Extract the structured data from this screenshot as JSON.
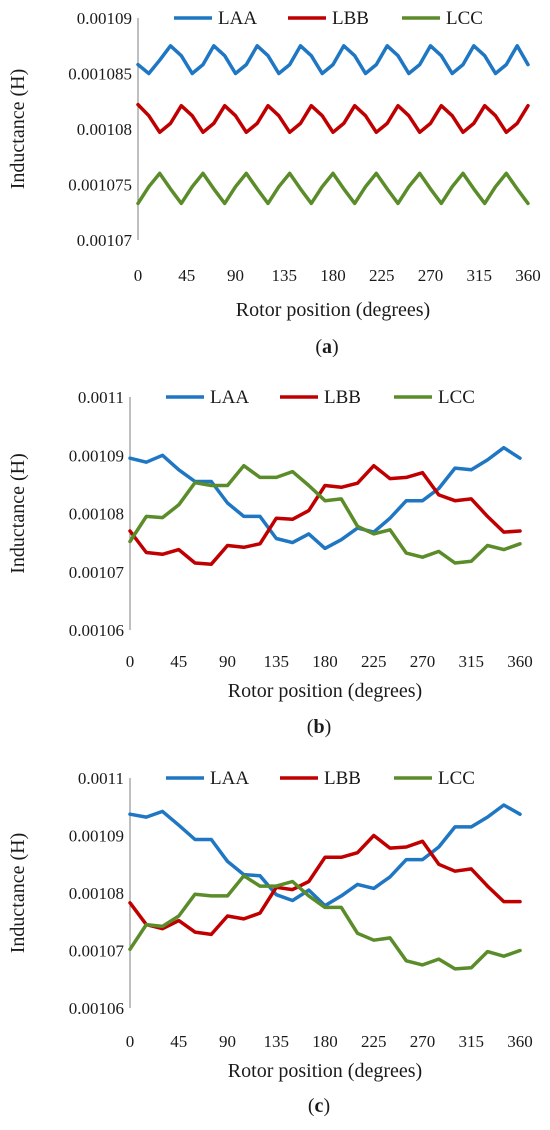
{
  "chart_data": [
    {
      "type": "line",
      "caption": "a",
      "xlabel": "Rotor position (degrees)",
      "ylabel": "Inductance (H)",
      "xlim": [
        0,
        360
      ],
      "ylim": [
        0.00107,
        0.00109
      ],
      "xticks": [
        0,
        45,
        90,
        135,
        180,
        225,
        270,
        315,
        360
      ],
      "yticks": [
        0.00107,
        0.001075,
        0.00108,
        0.001085,
        0.00109
      ],
      "ytick_labels": [
        "0.00107",
        "0.001075",
        "0.00108",
        "0.001085",
        "0.00109"
      ],
      "grid": false,
      "legend_position": "top",
      "series": [
        {
          "name": "LAA",
          "color": "#1f77c4",
          "x": [
            0,
            10,
            20,
            30,
            40,
            50,
            60,
            70,
            80,
            90,
            100,
            110,
            120,
            130,
            140,
            150,
            160,
            170,
            180,
            190,
            200,
            210,
            220,
            230,
            240,
            250,
            260,
            270,
            280,
            290,
            300,
            310,
            320,
            330,
            340,
            350,
            360
          ],
          "y": [
            0.0010858,
            0.001085,
            0.0010862,
            0.0010875,
            0.0010866,
            0.001085,
            0.0010858,
            0.0010875,
            0.0010866,
            0.001085,
            0.0010858,
            0.0010875,
            0.0010866,
            0.001085,
            0.0010858,
            0.0010875,
            0.0010866,
            0.001085,
            0.0010858,
            0.0010875,
            0.0010866,
            0.001085,
            0.0010858,
            0.0010875,
            0.0010866,
            0.001085,
            0.0010858,
            0.0010875,
            0.0010866,
            0.001085,
            0.0010858,
            0.0010875,
            0.0010866,
            0.001085,
            0.0010858,
            0.0010875,
            0.0010858
          ]
        },
        {
          "name": "LBB",
          "color": "#c00000",
          "x": [
            0,
            10,
            20,
            30,
            40,
            50,
            60,
            70,
            80,
            90,
            100,
            110,
            120,
            130,
            140,
            150,
            160,
            170,
            180,
            190,
            200,
            210,
            220,
            230,
            240,
            250,
            260,
            270,
            280,
            290,
            300,
            310,
            320,
            330,
            340,
            350,
            360
          ],
          "y": [
            0.0010822,
            0.0010812,
            0.0010797,
            0.0010805,
            0.0010821,
            0.0010812,
            0.0010797,
            0.0010805,
            0.0010821,
            0.0010812,
            0.0010797,
            0.0010805,
            0.0010821,
            0.0010812,
            0.0010797,
            0.0010805,
            0.0010821,
            0.0010812,
            0.0010797,
            0.0010805,
            0.0010821,
            0.0010812,
            0.0010797,
            0.0010805,
            0.0010821,
            0.0010812,
            0.0010797,
            0.0010805,
            0.0010821,
            0.0010812,
            0.0010797,
            0.0010805,
            0.0010821,
            0.0010812,
            0.0010797,
            0.0010805,
            0.0010821
          ]
        },
        {
          "name": "LCC",
          "color": "#5b8c2a",
          "x": [
            0,
            10,
            20,
            30,
            40,
            50,
            60,
            70,
            80,
            90,
            100,
            110,
            120,
            130,
            140,
            150,
            160,
            170,
            180,
            190,
            200,
            210,
            220,
            230,
            240,
            250,
            260,
            270,
            280,
            290,
            300,
            310,
            320,
            330,
            340,
            350,
            360
          ],
          "y": [
            0.0010733,
            0.0010748,
            0.001076,
            0.0010746,
            0.0010733,
            0.0010748,
            0.001076,
            0.0010746,
            0.0010733,
            0.0010748,
            0.001076,
            0.0010746,
            0.0010733,
            0.0010748,
            0.001076,
            0.0010746,
            0.0010733,
            0.0010748,
            0.001076,
            0.0010746,
            0.0010733,
            0.0010748,
            0.001076,
            0.0010746,
            0.0010733,
            0.0010748,
            0.001076,
            0.0010746,
            0.0010733,
            0.0010748,
            0.001076,
            0.0010746,
            0.0010733,
            0.0010748,
            0.001076,
            0.0010746,
            0.0010733
          ]
        }
      ]
    },
    {
      "type": "line",
      "caption": "b",
      "xlabel": "Rotor position (degrees)",
      "ylabel": "Inductance (H)",
      "xlim": [
        0,
        360
      ],
      "ylim": [
        0.00106,
        0.0011
      ],
      "xticks": [
        0,
        45,
        90,
        135,
        180,
        225,
        270,
        315,
        360
      ],
      "yticks": [
        0.00106,
        0.00107,
        0.00108,
        0.00109,
        0.0011
      ],
      "ytick_labels": [
        "0.00106",
        "0.00107",
        "0.00108",
        "0.00109",
        "0.0011"
      ],
      "grid": false,
      "legend_position": "top",
      "series": [
        {
          "name": "LAA",
          "color": "#1f77c4",
          "x": [
            0,
            15,
            30,
            45,
            60,
            75,
            90,
            105,
            120,
            135,
            150,
            165,
            180,
            195,
            210,
            225,
            240,
            255,
            270,
            285,
            300,
            315,
            330,
            345,
            360
          ],
          "y": [
            0.0010895,
            0.0010888,
            0.00109,
            0.0010875,
            0.0010855,
            0.0010855,
            0.0010818,
            0.0010795,
            0.0010795,
            0.0010757,
            0.001075,
            0.0010765,
            0.001074,
            0.0010755,
            0.0010775,
            0.0010768,
            0.0010792,
            0.0010822,
            0.0010822,
            0.0010843,
            0.0010878,
            0.0010875,
            0.0010892,
            0.0010913,
            0.0010895
          ]
        },
        {
          "name": "LBB",
          "color": "#c00000",
          "x": [
            0,
            15,
            30,
            45,
            60,
            75,
            90,
            105,
            120,
            135,
            150,
            165,
            180,
            195,
            210,
            225,
            240,
            255,
            270,
            285,
            300,
            315,
            330,
            345,
            360
          ],
          "y": [
            0.001077,
            0.0010733,
            0.001073,
            0.0010738,
            0.0010715,
            0.0010713,
            0.0010745,
            0.0010742,
            0.0010748,
            0.0010792,
            0.001079,
            0.0010805,
            0.0010848,
            0.0010845,
            0.0010852,
            0.0010882,
            0.001086,
            0.0010862,
            0.001087,
            0.0010832,
            0.0010822,
            0.0010825,
            0.0010795,
            0.0010768,
            0.001077
          ]
        },
        {
          "name": "LCC",
          "color": "#5b8c2a",
          "x": [
            0,
            15,
            30,
            45,
            60,
            75,
            90,
            105,
            120,
            135,
            150,
            165,
            180,
            195,
            210,
            225,
            240,
            255,
            270,
            285,
            300,
            315,
            330,
            345,
            360
          ],
          "y": [
            0.0010752,
            0.0010795,
            0.0010793,
            0.0010815,
            0.0010853,
            0.0010848,
            0.0010848,
            0.0010882,
            0.0010862,
            0.0010862,
            0.0010872,
            0.0010848,
            0.0010822,
            0.0010825,
            0.0010778,
            0.0010765,
            0.0010772,
            0.0010732,
            0.0010725,
            0.0010735,
            0.0010715,
            0.0010718,
            0.0010745,
            0.0010738,
            0.0010748
          ]
        }
      ]
    },
    {
      "type": "line",
      "caption": "c",
      "xlabel": "Rotor position (degrees)",
      "ylabel": "Inductance (H)",
      "xlim": [
        0,
        360
      ],
      "ylim": [
        0.00106,
        0.0011
      ],
      "xticks": [
        0,
        45,
        90,
        135,
        180,
        225,
        270,
        315,
        360
      ],
      "yticks": [
        0.00106,
        0.00107,
        0.00108,
        0.00109,
        0.0011
      ],
      "ytick_labels": [
        "0.00106",
        "0.00107",
        "0.00108",
        "0.00109",
        "0.0011"
      ],
      "grid": false,
      "legend_position": "top",
      "series": [
        {
          "name": "LAA",
          "color": "#1f77c4",
          "x": [
            0,
            15,
            30,
            45,
            60,
            75,
            90,
            105,
            120,
            135,
            150,
            165,
            180,
            195,
            210,
            225,
            240,
            255,
            270,
            285,
            300,
            315,
            330,
            345,
            360
          ],
          "y": [
            0.0010937,
            0.0010932,
            0.0010942,
            0.0010918,
            0.0010893,
            0.0010893,
            0.0010855,
            0.0010832,
            0.001083,
            0.0010797,
            0.0010787,
            0.0010805,
            0.0010778,
            0.0010795,
            0.0010815,
            0.0010808,
            0.0010828,
            0.0010858,
            0.0010858,
            0.001088,
            0.0010915,
            0.0010915,
            0.0010932,
            0.0010953,
            0.0010937
          ]
        },
        {
          "name": "LBB",
          "color": "#c00000",
          "x": [
            0,
            15,
            30,
            45,
            60,
            75,
            90,
            105,
            120,
            135,
            150,
            165,
            180,
            195,
            210,
            225,
            240,
            255,
            270,
            285,
            300,
            315,
            330,
            345,
            360
          ],
          "y": [
            0.0010783,
            0.0010745,
            0.0010738,
            0.0010752,
            0.0010732,
            0.0010728,
            0.001076,
            0.0010755,
            0.0010765,
            0.001081,
            0.0010806,
            0.001082,
            0.0010862,
            0.0010862,
            0.001087,
            0.00109,
            0.0010878,
            0.001088,
            0.001089,
            0.001085,
            0.0010838,
            0.0010842,
            0.0010812,
            0.0010785,
            0.0010785
          ]
        },
        {
          "name": "LCC",
          "color": "#5b8c2a",
          "x": [
            0,
            15,
            30,
            45,
            60,
            75,
            90,
            105,
            120,
            135,
            150,
            165,
            180,
            195,
            210,
            225,
            240,
            255,
            270,
            285,
            300,
            315,
            330,
            345,
            360
          ],
          "y": [
            0.0010702,
            0.0010745,
            0.0010742,
            0.001076,
            0.0010798,
            0.0010795,
            0.0010795,
            0.001083,
            0.0010812,
            0.0010812,
            0.001082,
            0.0010795,
            0.0010775,
            0.0010775,
            0.001073,
            0.0010718,
            0.0010722,
            0.0010682,
            0.0010675,
            0.0010685,
            0.0010668,
            0.001067,
            0.0010698,
            0.001069,
            0.00107
          ]
        }
      ]
    }
  ]
}
